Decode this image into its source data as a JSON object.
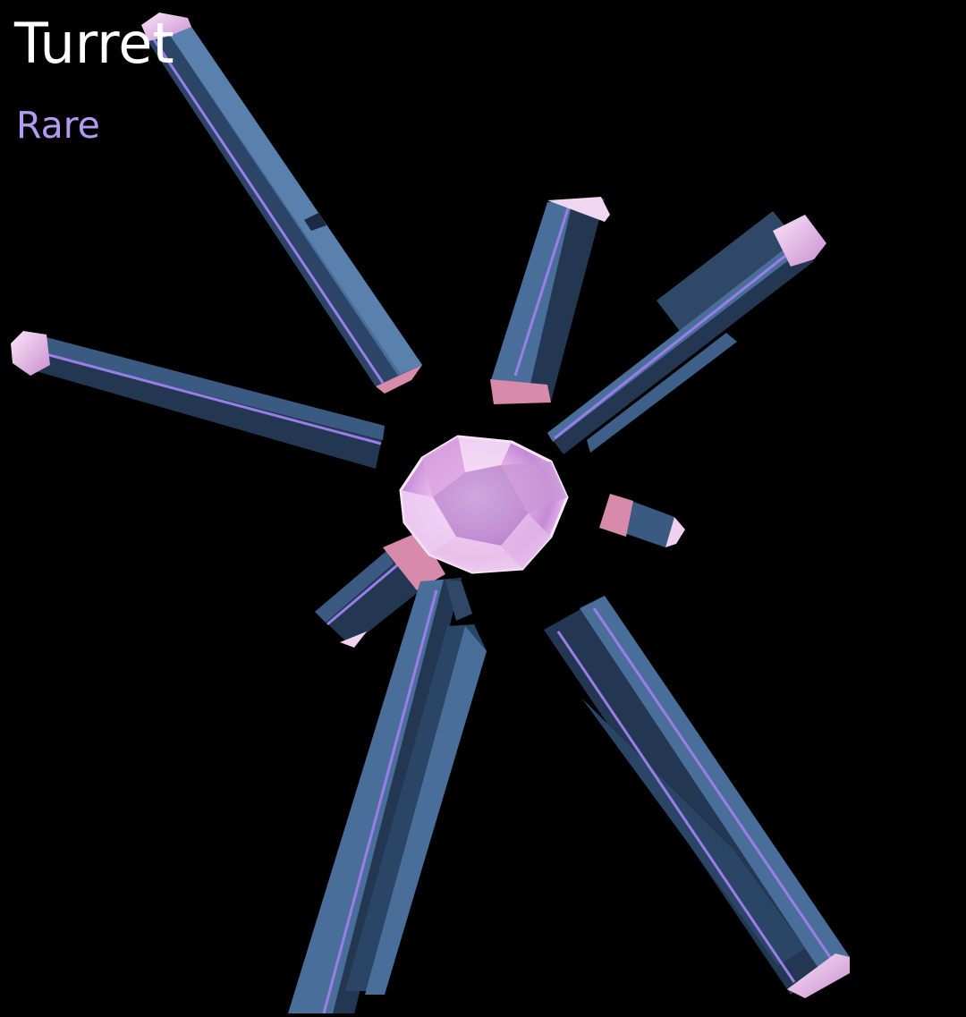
{
  "item": {
    "name": "Turret",
    "rarity": "Rare"
  },
  "colors": {
    "background": "#000000",
    "name_text": "#ffffff",
    "rarity_text": "#b49af0",
    "rod_face_light": "#4a6e9a",
    "rod_face_dark": "#233752",
    "rod_stripe": "#9a7ee8",
    "crystal_tip": "#f2c6ec",
    "rod_end_cap": "#d88aab",
    "core_gem": "#f0c8ee"
  },
  "scene": {
    "rod_count": 9,
    "core": "crystal-core-icon"
  }
}
